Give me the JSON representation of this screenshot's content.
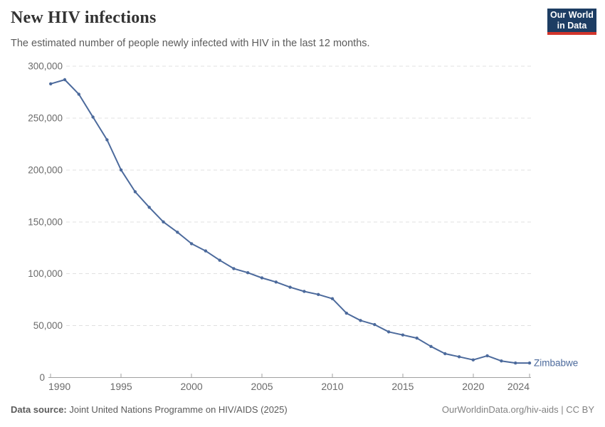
{
  "header": {
    "title": "New HIV infections",
    "subtitle": "The estimated number of people newly infected with HIV in the last 12 months.",
    "logo": {
      "line1": "Our World",
      "line2": "in Data"
    }
  },
  "footer": {
    "source_label": "Data source:",
    "source_text": " Joint United Nations Programme on HIV/AIDS (2025)",
    "link_text": "OurWorldinData.org/hiv-aids | CC BY"
  },
  "colors": {
    "line": "#4c6a9c",
    "grid": "#e0e0e0",
    "axis": "#a0a0a0",
    "tick_label": "#6b6b6b",
    "logo_bg": "#1d3d63",
    "logo_red": "#d2352c"
  },
  "chart_data": {
    "type": "line",
    "title": "New HIV infections",
    "subtitle": "The estimated number of people newly infected with HIV in the last 12 months.",
    "xlabel": "",
    "ylabel": "",
    "x_range": [
      1990,
      2024
    ],
    "ylim": [
      0,
      300000
    ],
    "yticks": [
      0,
      50000,
      100000,
      150000,
      200000,
      250000,
      300000
    ],
    "xticks": [
      1990,
      1995,
      2000,
      2005,
      2010,
      2015,
      2020,
      2024
    ],
    "grid": "horizontal-dashed",
    "legend": "end-of-line-label",
    "x": [
      1990,
      1991,
      1992,
      1993,
      1994,
      1995,
      1996,
      1997,
      1998,
      1999,
      2000,
      2001,
      2002,
      2003,
      2004,
      2005,
      2006,
      2007,
      2008,
      2009,
      2010,
      2011,
      2012,
      2013,
      2014,
      2015,
      2016,
      2017,
      2018,
      2019,
      2020,
      2021,
      2022,
      2023,
      2024
    ],
    "series": [
      {
        "name": "Zimbabwe",
        "values": [
          283000,
          287000,
          273000,
          251000,
          229000,
          200000,
          179000,
          164000,
          150000,
          140000,
          129000,
          122000,
          113000,
          105000,
          101000,
          96000,
          92000,
          87000,
          83000,
          80000,
          76000,
          62000,
          55000,
          51000,
          44000,
          41000,
          38000,
          30000,
          23000,
          20000,
          17000,
          21000,
          16000,
          14000,
          14000
        ]
      }
    ]
  }
}
